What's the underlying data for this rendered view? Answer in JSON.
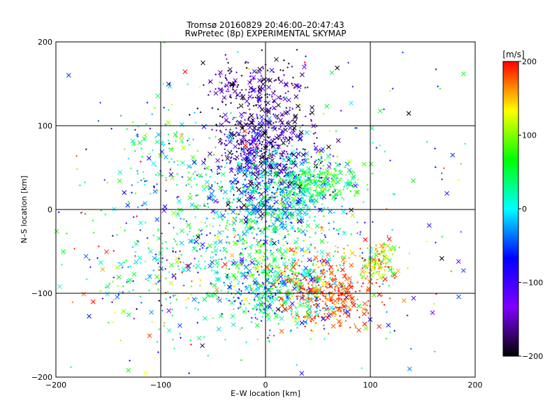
{
  "chart_data": {
    "type": "scatter",
    "title": "Tromsø 20160829 20:46:00–20:47:43",
    "subtitle": "RwPretec (8p) EXPERIMENTAL SKYMAP",
    "xlabel": "E–W location [km]",
    "ylabel": "N–S location [km]",
    "xlim": [
      -200,
      200
    ],
    "ylim": [
      -200,
      200
    ],
    "grid": true,
    "grid_values": [
      -100,
      0,
      100
    ],
    "xticks": [
      "−200",
      "−100",
      "0",
      "100",
      "200"
    ],
    "yticks": [
      "−200",
      "−100",
      "0",
      "100",
      "200"
    ],
    "colorbar": {
      "label": "[m/s]",
      "range": [
        -200,
        200
      ],
      "ticks": [
        "200",
        "100",
        "0",
        "−100",
        "−200"
      ],
      "colors": [
        "#000000",
        "#7f00ff",
        "#0000ff",
        "#00ffff",
        "#00ff00",
        "#ffff00",
        "#ff0000"
      ]
    },
    "marker_types": [
      "plus",
      "cross"
    ],
    "clusters": [
      {
        "x": 0,
        "y": 70,
        "sx": 25,
        "sy": 30,
        "v": -150,
        "vs": 50,
        "n": 600
      },
      {
        "x": -10,
        "y": 140,
        "sx": 25,
        "sy": 20,
        "v": -170,
        "vs": 40,
        "n": 200
      },
      {
        "x": 10,
        "y": 20,
        "sx": 30,
        "sy": 25,
        "v": -10,
        "vs": 40,
        "n": 500
      },
      {
        "x": 50,
        "y": 35,
        "sx": 20,
        "sy": 12,
        "v": 60,
        "vs": 30,
        "n": 200
      },
      {
        "x": 10,
        "y": -95,
        "sx": 30,
        "sy": 20,
        "v": 0,
        "vs": 60,
        "n": 450
      },
      {
        "x": 60,
        "y": -100,
        "sx": 25,
        "sy": 20,
        "v": 180,
        "vs": 20,
        "n": 350
      },
      {
        "x": 110,
        "y": -60,
        "sx": 10,
        "sy": 12,
        "v": 130,
        "vs": 50,
        "n": 130
      },
      {
        "x": -10,
        "y": -40,
        "sx": 40,
        "sy": 30,
        "v": 40,
        "vs": 60,
        "n": 350
      },
      {
        "x": -90,
        "y": 60,
        "sx": 30,
        "sy": 40,
        "v": 20,
        "vs": 60,
        "n": 150
      },
      {
        "x": -100,
        "y": -80,
        "sx": 50,
        "sy": 40,
        "v": 30,
        "vs": 90,
        "n": 220
      },
      {
        "x": 0,
        "y": 0,
        "sx": 110,
        "sy": 110,
        "v": 0,
        "vs": 120,
        "n": 450
      }
    ]
  }
}
